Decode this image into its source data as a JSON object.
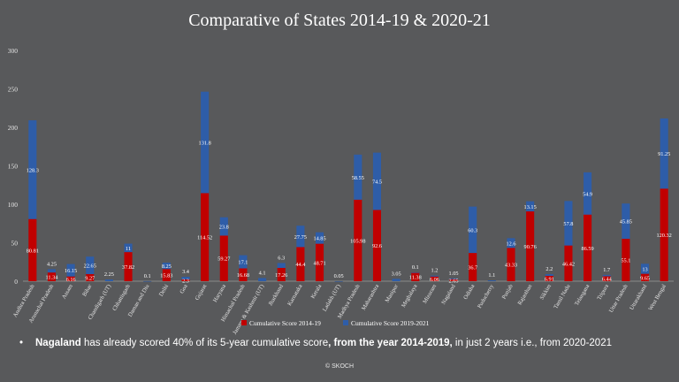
{
  "chart_data": {
    "type": "bar",
    "stacked": true,
    "title": "Comparative of States 2014-19 & 2020-21",
    "ylim": [
      0,
      300
    ],
    "yticks": [
      0,
      50,
      100,
      150,
      200,
      250,
      300
    ],
    "grid": false,
    "legend_position": "bottom",
    "categories": [
      "Andhra Pradesh",
      "Arunachal Pradesh",
      "Assam",
      "Bihar",
      "Chandigarh (UT)",
      "Chhattisgarh",
      "Daman and Diu",
      "Delhi",
      "Goa",
      "Gujarat",
      "Haryana",
      "Himachal Pradesh",
      "Jammu & Kashmir (UT)",
      "Jharkhand",
      "Karnataka",
      "Kerala",
      "Ladakh (UT)",
      "Madhya Pradesh",
      "Maharashtra",
      "Manipur",
      "Meghalaya",
      "Mizoram",
      "Nagaland",
      "Odisha",
      "Puducherry",
      "Punjab",
      "Rajasthan",
      "Sikkim",
      "Tamil Nadu",
      "Telangana",
      "Tripura",
      "Uttar Pradesh",
      "Uttarakhand",
      "West Bengal"
    ],
    "series": [
      {
        "name": "Cumulative Score 2014-19",
        "color": "#c00000",
        "values": [
          80.81,
          11.34,
          6.16,
          9.27,
          0,
          37.82,
          0,
          15.83,
          2.3,
          114.52,
          59.27,
          16.68,
          0,
          17.26,
          44.4,
          48.71,
          0,
          105.98,
          92.6,
          0,
          11.38,
          6.06,
          2.65,
          36.7,
          0,
          43.33,
          90.76,
          6.91,
          46.42,
          86.59,
          6.44,
          55.1,
          9.65,
          120.32
        ]
      },
      {
        "name": "Cumulative Score 2019-2021",
        "color": "#2e5da8",
        "values": [
          128.3,
          4.25,
          16.15,
          22.65,
          2.25,
          11,
          0.1,
          8.25,
          3.4,
          131.8,
          23.8,
          17.1,
          4.1,
          6.3,
          27.75,
          14.85,
          0.05,
          58.55,
          74.5,
          3.05,
          0.1,
          1.2,
          1.05,
          60.3,
          1.1,
          12.6,
          13.15,
          2.2,
          57.8,
          54.9,
          1.7,
          45.85,
          13,
          91.25
        ]
      }
    ],
    "labels_2014_19": [
      "80.81",
      "11.34",
      "6.16",
      "9.27",
      "",
      "37.82",
      "",
      "15.83",
      "2.3",
      "114.52",
      "59.27",
      "16.68",
      "",
      "17.26",
      "44.4",
      "48.71",
      "",
      "105.98",
      "92.6",
      "",
      "11.38",
      "6.06",
      "2.65",
      "36.7",
      "",
      "43.33",
      "90.76",
      "6.91",
      "46.42",
      "86.59",
      "6.44",
      "55.1",
      "9.65",
      "120.32"
    ],
    "labels_2019_2021": [
      "128.3",
      "4.25",
      "16.15",
      "22.65",
      "2.25",
      "11",
      "0.1",
      "8.25",
      "3.4",
      "131.8",
      "23.8",
      "17.1",
      "4.1",
      "6.3",
      "27.75",
      "14.85",
      "0.05",
      "58.55",
      "74.5",
      "3.05",
      "0.1",
      "1.2",
      "1.05",
      "60.3",
      "1.1",
      "12.6",
      "13.15",
      "2.2",
      "57.8",
      "54.9",
      "1.7",
      "45.85",
      "13",
      "91.25"
    ]
  },
  "note": {
    "bullet": "•",
    "bold_lead": "Nagaland",
    "text_1": " has already scored 40% of its 5-year cumulative score",
    "text_2": ", from the year 2014-2019,",
    "text_3": "  in just 2 years i.e., from 2020-2021"
  },
  "footer": "© SKOCH"
}
